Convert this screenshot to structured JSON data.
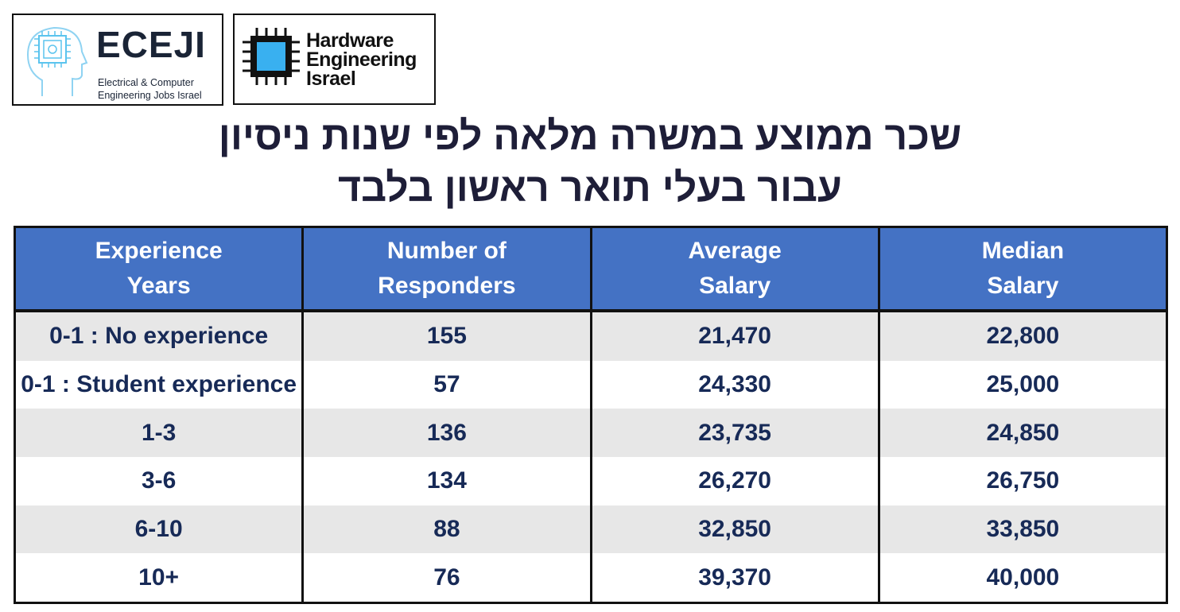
{
  "header": {
    "logos": [
      {
        "name": "ECEJI",
        "tagline": [
          "Electrical  &  Computer",
          "Engineering Jobs Israel"
        ]
      },
      {
        "lines": [
          "Hardware",
          "Engineering",
          "Israel"
        ]
      }
    ],
    "title": [
      "שכר ממוצע במשרה מלאה לפי שנות ניסיון",
      "עבור בעלי תואר ראשון בלבד"
    ]
  },
  "table": {
    "columns": [
      [
        "Experience",
        "Years"
      ],
      [
        "Number of",
        "Responders"
      ],
      [
        "Average",
        "Salary"
      ],
      [
        "Median",
        "Salary"
      ]
    ],
    "rows": [
      [
        "0-1 : No experience",
        "155",
        "21,470",
        "22,800"
      ],
      [
        "0-1 : Student experience",
        "57",
        "24,330",
        "25,000"
      ],
      [
        "1-3",
        "136",
        "23,735",
        "24,850"
      ],
      [
        "3-6",
        "134",
        "26,270",
        "26,750"
      ],
      [
        "6-10",
        "88",
        "32,850",
        "33,850"
      ],
      [
        "10+",
        "76",
        "39,370",
        "40,000"
      ]
    ]
  }
}
